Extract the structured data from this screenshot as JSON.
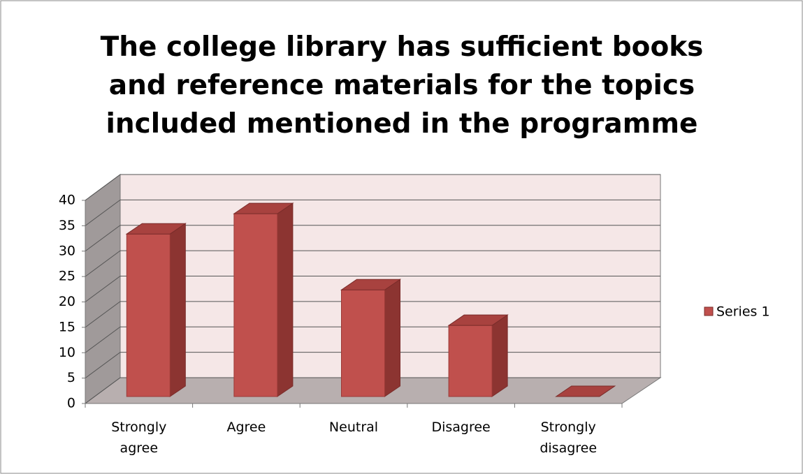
{
  "chart_data": {
    "type": "bar",
    "title": "The college library has sufficient books and reference materials for the topics included mentioned in the programme",
    "categories": [
      "Strongly agree",
      "Agree",
      "Neutral",
      "Disagree",
      "Strongly disagree"
    ],
    "series": [
      {
        "name": "Series 1",
        "color": "#c0504d",
        "values": [
          32,
          36,
          21,
          14,
          0
        ]
      }
    ],
    "ylim": [
      0,
      40
    ],
    "yticks": [
      0,
      5,
      10,
      15,
      20,
      25,
      30,
      35,
      40
    ],
    "grid": true,
    "legend": "right"
  }
}
